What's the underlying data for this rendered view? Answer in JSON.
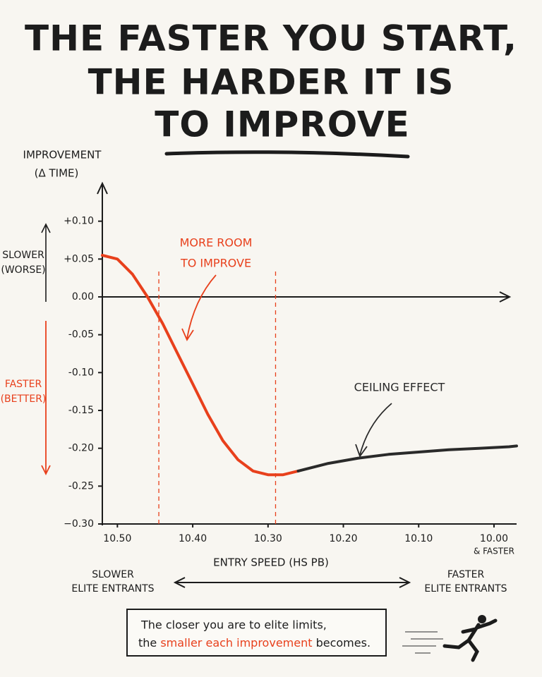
{
  "chart_data": {
    "type": "line",
    "title": [
      "THE FASTER YOU START,",
      "THE HARDER IT IS",
      "TO IMPROVE"
    ],
    "y_label": [
      "IMPROVEMENT",
      "(Δ TIME)"
    ],
    "x_label": "ENTRY SPEED (HS PB)",
    "up_label": [
      "SLOWER",
      "(WORSE)"
    ],
    "down_label": [
      "FASTER",
      "(BETTER)"
    ],
    "xlim": [
      10.52,
      9.97
    ],
    "ylim": [
      -0.3,
      0.15
    ],
    "xticks": [
      {
        "value": 10.5,
        "label": "10.50"
      },
      {
        "value": 10.4,
        "label": "10.40"
      },
      {
        "value": 10.3,
        "label": "10.30"
      },
      {
        "value": 10.2,
        "label": "10.20"
      },
      {
        "value": 10.1,
        "label": "10.10"
      },
      {
        "value": 10.0,
        "label": "10.00"
      }
    ],
    "xtick_note": "& FASTER",
    "yticks": [
      {
        "value": 0.1,
        "label": "+0.10"
      },
      {
        "value": 0.05,
        "label": "+0.05"
      },
      {
        "value": 0,
        "label": "0.00"
      },
      {
        "value": -0.05,
        "label": "-0.05"
      },
      {
        "value": -0.1,
        "label": "-0.10"
      },
      {
        "value": -0.15,
        "label": "-0.15"
      },
      {
        "value": -0.2,
        "label": "-0.20"
      },
      {
        "value": -0.25,
        "label": "-0.25"
      },
      {
        "value": -0.3,
        "label": "−0.30"
      }
    ],
    "vlines": [
      10.445,
      10.29
    ],
    "series": [
      {
        "color": "#e8401c",
        "x": [
          10.52,
          10.5,
          10.48,
          10.46,
          10.44,
          10.42,
          10.4,
          10.38,
          10.36,
          10.34,
          10.32,
          10.3,
          10.28,
          10.26
        ],
        "values": [
          0.055,
          0.05,
          0.03,
          0.0,
          -0.035,
          -0.075,
          -0.115,
          -0.155,
          -0.19,
          -0.215,
          -0.23,
          -0.235,
          -0.235,
          -0.23
        ]
      },
      {
        "color": "#2a2a2a",
        "x": [
          10.26,
          10.22,
          10.18,
          10.14,
          10.1,
          10.06,
          10.02,
          9.98,
          9.97
        ],
        "values": [
          -0.23,
          -0.22,
          -0.213,
          -0.208,
          -0.205,
          -0.202,
          -0.2,
          -0.198,
          -0.197
        ]
      }
    ],
    "annotations": [
      {
        "text": [
          "MORE ROOM",
          "TO IMPROVE"
        ],
        "color": "#e8401c"
      },
      {
        "text": [
          "CEILING EFFECT"
        ],
        "color": "#2a2a2a"
      }
    ],
    "bottom_left": [
      "SLOWER",
      "ELITE ENTRANTS"
    ],
    "bottom_right": [
      "FASTER",
      "ELITE ENTRANTS"
    ],
    "caption": {
      "line1": "The closer you are to elite limits,",
      "pre": "the ",
      "highlight": "smaller each improvement",
      "post": " becomes."
    }
  }
}
